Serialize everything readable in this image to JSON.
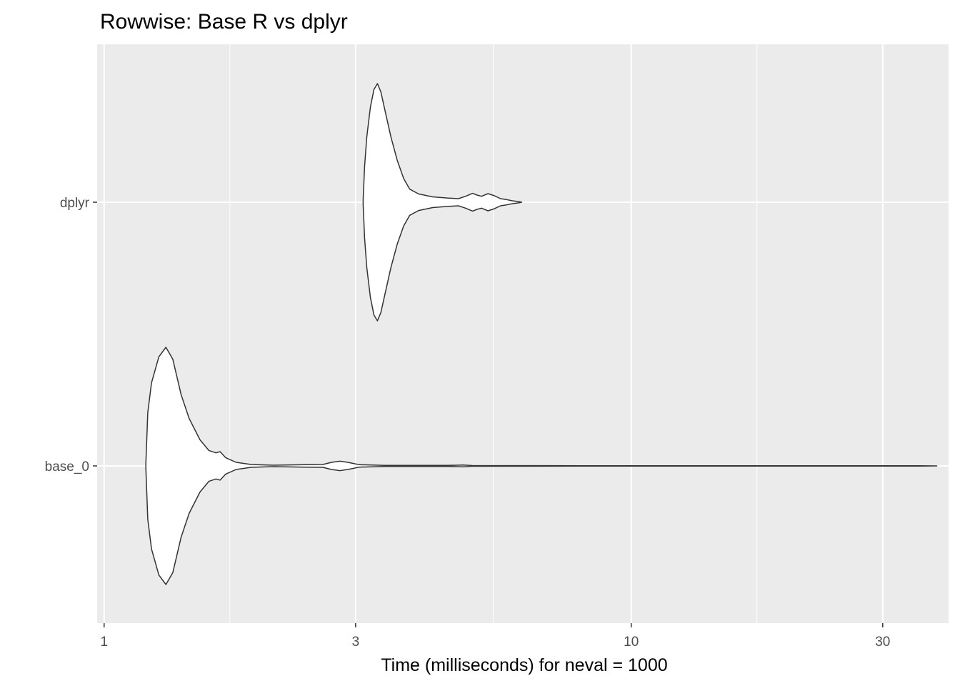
{
  "chart_data": {
    "type": "violin",
    "title": "Rowwise: Base R vs dplyr",
    "xlabel": "Time (milliseconds) for neval = 1000",
    "ylabel": "",
    "x_scale": "log10",
    "xlim": [
      0.97,
      40
    ],
    "x_ticks": [
      1,
      3,
      10,
      30
    ],
    "x_tick_labels": [
      "1",
      "3",
      "10",
      "30"
    ],
    "categories": [
      "dplyr",
      "base_0"
    ],
    "grid": true,
    "legend": "none",
    "colors": {
      "panel_background": "#ebebeb",
      "grid": "#ffffff",
      "violin_fill": "#ffffff",
      "violin_outline": "#333333"
    },
    "series": [
      {
        "category": "dplyr",
        "min": 3.1,
        "max": 6.2,
        "density": [
          [
            3.1,
            0.02
          ],
          [
            3.12,
            0.3
          ],
          [
            3.15,
            0.55
          ],
          [
            3.2,
            0.8
          ],
          [
            3.25,
            0.95
          ],
          [
            3.3,
            1.0
          ],
          [
            3.35,
            0.93
          ],
          [
            3.4,
            0.8
          ],
          [
            3.5,
            0.55
          ],
          [
            3.6,
            0.35
          ],
          [
            3.7,
            0.2
          ],
          [
            3.8,
            0.11
          ],
          [
            3.95,
            0.07
          ],
          [
            4.2,
            0.045
          ],
          [
            4.5,
            0.035
          ],
          [
            4.7,
            0.03
          ],
          [
            4.85,
            0.05
          ],
          [
            5.0,
            0.075
          ],
          [
            5.1,
            0.06
          ],
          [
            5.2,
            0.05
          ],
          [
            5.35,
            0.072
          ],
          [
            5.5,
            0.055
          ],
          [
            5.65,
            0.03
          ],
          [
            5.8,
            0.022
          ],
          [
            5.95,
            0.012
          ],
          [
            6.1,
            0.006
          ],
          [
            6.2,
            0.0
          ]
        ]
      },
      {
        "category": "base_0",
        "min": 1.2,
        "max": 38,
        "density": [
          [
            1.2,
            0.02
          ],
          [
            1.21,
            0.45
          ],
          [
            1.23,
            0.7
          ],
          [
            1.27,
            0.92
          ],
          [
            1.31,
            1.0
          ],
          [
            1.35,
            0.9
          ],
          [
            1.4,
            0.6
          ],
          [
            1.45,
            0.4
          ],
          [
            1.52,
            0.22
          ],
          [
            1.58,
            0.13
          ],
          [
            1.63,
            0.11
          ],
          [
            1.66,
            0.12
          ],
          [
            1.7,
            0.07
          ],
          [
            1.78,
            0.03
          ],
          [
            1.9,
            0.012
          ],
          [
            2.1,
            0.006
          ],
          [
            2.4,
            0.01
          ],
          [
            2.6,
            0.012
          ],
          [
            2.7,
            0.03
          ],
          [
            2.8,
            0.04
          ],
          [
            2.9,
            0.03
          ],
          [
            3.05,
            0.01
          ],
          [
            3.4,
            0.005
          ],
          [
            4.5,
            0.004
          ],
          [
            4.8,
            0.008
          ],
          [
            5.0,
            0.003
          ],
          [
            8.0,
            0.002
          ],
          [
            15.0,
            0.002
          ],
          [
            25.0,
            0.002
          ],
          [
            35.0,
            0.002
          ],
          [
            38.0,
            0.0
          ]
        ]
      }
    ]
  }
}
